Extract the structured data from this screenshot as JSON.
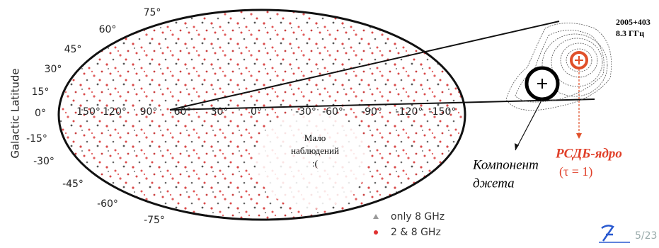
{
  "map": {
    "y_axis_label": "Galactic Latitude",
    "latitude_labels": [
      "75°",
      "60°",
      "45°",
      "30°",
      "15°",
      "0°",
      "-15°",
      "-30°",
      "-45°",
      "-60°",
      "-75°"
    ],
    "longitude_labels": [
      "150°",
      "120°",
      "90°",
      "60°",
      "30°",
      "0°",
      "-30°",
      "-60°",
      "-90°",
      "-120°",
      "-150°"
    ],
    "annotation": [
      "Мало",
      "наблюдений",
      ":("
    ]
  },
  "legend": [
    {
      "label": "only 8 GHz"
    },
    {
      "label": "2 & 8 GHz"
    }
  ],
  "inset": {
    "source": "2005+403",
    "frequency": "8.3 ГГц",
    "jet_label": [
      "Компонент",
      "джета"
    ],
    "core_label": "РСДБ-ядро",
    "core_note": "(τ = 1)"
  },
  "page_number": "5/23"
}
